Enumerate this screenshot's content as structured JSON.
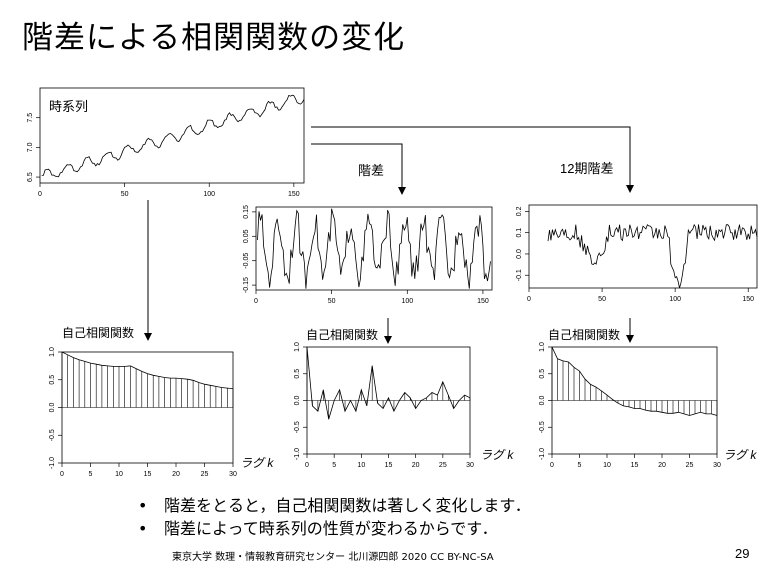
{
  "slide": {
    "title": "階差による相関関数の変化",
    "bullets": [
      "階差をとると，自己相関関数は著しく変化します．",
      "階差によって時系列の性質が変わるからです．"
    ],
    "footer": "東京大学 数理・情報教育研究センター 北川源四郎 2020 CC BY-NC-SA",
    "page_number": "29"
  },
  "labels": {
    "series": "時系列",
    "diff": "階差",
    "seasonal_diff": "12期階差",
    "acf": "自己相関関数",
    "lag": "ラグ k"
  },
  "chart_data": [
    {
      "id": "series",
      "type": "line",
      "title": "時系列",
      "xlim": [
        0,
        156
      ],
      "ylim": [
        6.4,
        8.0
      ],
      "xticks": [
        "0",
        "50",
        "100",
        "150"
      ],
      "yticks": [
        "6.5",
        "7.0",
        "7.5"
      ],
      "trend": [
        6.5,
        7.85
      ],
      "season_amp": 0.09,
      "n": 156
    },
    {
      "id": "diff",
      "type": "line",
      "title": "階差",
      "xlim": [
        0,
        156
      ],
      "ylim": [
        -0.17,
        0.17
      ],
      "xticks": [
        "0",
        "50",
        "100",
        "150"
      ],
      "yticks": [
        "-0.15",
        "-0.05",
        "0.05",
        "0.15"
      ],
      "n": 155
    },
    {
      "id": "seasonal-diff",
      "type": "line",
      "title": "12期階差",
      "xlim": [
        0,
        156
      ],
      "ylim": [
        -0.16,
        0.23
      ],
      "xticks": [
        "0",
        "50",
        "100",
        "150"
      ],
      "yticks": [
        "-0.1",
        "0.0",
        "0.1",
        "0.2"
      ],
      "n": 144
    },
    {
      "id": "acf-series",
      "type": "bar",
      "title": "自己相関関数",
      "xlabel": "ラグ k",
      "xlim": [
        0,
        30
      ],
      "ylim": [
        -1.0,
        1.0
      ],
      "xticks": [
        "0",
        "5",
        "10",
        "15",
        "20",
        "25",
        "30"
      ],
      "yticks": [
        "-1.0",
        "-0.5",
        "0.0",
        "0.5",
        "1.0"
      ],
      "values": [
        1.0,
        0.95,
        0.9,
        0.86,
        0.83,
        0.8,
        0.78,
        0.76,
        0.75,
        0.74,
        0.74,
        0.74,
        0.75,
        0.7,
        0.65,
        0.61,
        0.58,
        0.56,
        0.54,
        0.53,
        0.53,
        0.52,
        0.51,
        0.49,
        0.45,
        0.42,
        0.4,
        0.38,
        0.36,
        0.35,
        0.34
      ]
    },
    {
      "id": "acf-diff",
      "type": "bar",
      "title": "自己相関関数",
      "xlabel": "ラグ k",
      "xlim": [
        0,
        30
      ],
      "ylim": [
        -1.0,
        1.0
      ],
      "xticks": [
        "0",
        "5",
        "10",
        "15",
        "20",
        "25",
        "30"
      ],
      "yticks": [
        "-1.0",
        "-0.5",
        "0.0",
        "0.5",
        "1.0"
      ],
      "values": [
        1.0,
        -0.1,
        -0.2,
        0.2,
        -0.35,
        0.0,
        0.2,
        -0.2,
        0.0,
        -0.2,
        0.2,
        -0.1,
        0.65,
        -0.05,
        -0.15,
        0.05,
        -0.2,
        0.0,
        0.15,
        0.05,
        -0.15,
        0.0,
        0.05,
        0.15,
        0.1,
        0.35,
        0.1,
        -0.15,
        0.0,
        0.1,
        0.05
      ]
    },
    {
      "id": "acf-seasonal-diff",
      "type": "bar",
      "title": "自己相関関数",
      "xlabel": "ラグ k",
      "xlim": [
        0,
        30
      ],
      "ylim": [
        -1.0,
        1.0
      ],
      "xticks": [
        "0",
        "5",
        "10",
        "15",
        "20",
        "25",
        "30"
      ],
      "yticks": [
        "-1.0",
        "-0.5",
        "0.0",
        "0.5",
        "1.0"
      ],
      "values": [
        1.0,
        0.78,
        0.74,
        0.72,
        0.62,
        0.55,
        0.4,
        0.3,
        0.25,
        0.18,
        0.1,
        0.02,
        -0.05,
        -0.1,
        -0.12,
        -0.15,
        -0.15,
        -0.18,
        -0.2,
        -0.2,
        -0.22,
        -0.24,
        -0.24,
        -0.22,
        -0.25,
        -0.28,
        -0.25,
        -0.22,
        -0.25,
        -0.25,
        -0.28
      ]
    }
  ]
}
